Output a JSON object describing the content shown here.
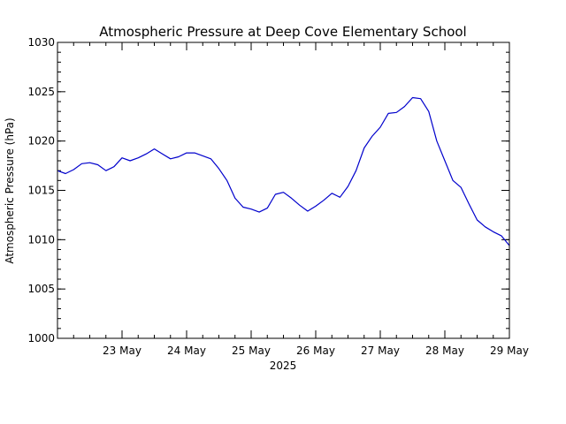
{
  "chart_data": {
    "type": "line",
    "title": "Atmospheric Pressure at Deep Cove Elementary School",
    "ylabel": "Atmospheric Pressure (hPa)",
    "xlabel": "2025",
    "xlim": [
      "2025-05-22T00:00",
      "2025-05-29T00:00"
    ],
    "ylim": [
      1000,
      1030
    ],
    "y_major_ticks": [
      1000,
      1005,
      1010,
      1015,
      1020,
      1025,
      1030
    ],
    "y_minor_step": 1,
    "x_major_ticks": [
      {
        "date": "2025-05-23T00:00",
        "label": "23 May"
      },
      {
        "date": "2025-05-24T00:00",
        "label": "24 May"
      },
      {
        "date": "2025-05-25T00:00",
        "label": "25 May"
      },
      {
        "date": "2025-05-26T00:00",
        "label": "26 May"
      },
      {
        "date": "2025-05-27T00:00",
        "label": "27 May"
      },
      {
        "date": "2025-05-28T00:00",
        "label": "28 May"
      },
      {
        "date": "2025-05-29T00:00",
        "label": "29 May"
      }
    ],
    "x_minor_step_hours": 6,
    "grid": false,
    "line_color": "#0000cc",
    "series": [
      {
        "x": [
          "2025-05-22T00:00",
          "2025-05-22T03:00",
          "2025-05-22T06:00",
          "2025-05-22T09:00",
          "2025-05-22T12:00",
          "2025-05-22T15:00",
          "2025-05-22T18:00",
          "2025-05-22T21:00",
          "2025-05-23T00:00",
          "2025-05-23T03:00",
          "2025-05-23T06:00",
          "2025-05-23T09:00",
          "2025-05-23T12:00",
          "2025-05-23T15:00",
          "2025-05-23T18:00",
          "2025-05-23T21:00",
          "2025-05-24T00:00",
          "2025-05-24T03:00",
          "2025-05-24T06:00",
          "2025-05-24T09:00",
          "2025-05-24T12:00",
          "2025-05-24T15:00",
          "2025-05-24T18:00",
          "2025-05-24T21:00",
          "2025-05-25T00:00",
          "2025-05-25T03:00",
          "2025-05-25T06:00",
          "2025-05-25T09:00",
          "2025-05-25T12:00",
          "2025-05-25T15:00",
          "2025-05-25T18:00",
          "2025-05-25T21:00",
          "2025-05-26T00:00",
          "2025-05-26T03:00",
          "2025-05-26T06:00",
          "2025-05-26T09:00",
          "2025-05-26T12:00",
          "2025-05-26T15:00",
          "2025-05-26T18:00",
          "2025-05-26T21:00",
          "2025-05-27T00:00",
          "2025-05-27T03:00",
          "2025-05-27T06:00",
          "2025-05-27T09:00",
          "2025-05-27T12:00",
          "2025-05-27T15:00",
          "2025-05-27T18:00",
          "2025-05-27T21:00",
          "2025-05-28T00:00",
          "2025-05-28T03:00",
          "2025-05-28T06:00",
          "2025-05-28T09:00",
          "2025-05-28T12:00",
          "2025-05-28T15:00",
          "2025-05-28T18:00",
          "2025-05-28T21:00",
          "2025-05-29T00:00"
        ],
        "y": [
          1017.0,
          1016.7,
          1017.1,
          1017.7,
          1017.8,
          1017.6,
          1017.0,
          1017.4,
          1018.3,
          1018.0,
          1018.3,
          1018.7,
          1019.2,
          1018.7,
          1018.2,
          1018.4,
          1018.8,
          1018.8,
          1018.5,
          1018.2,
          1017.2,
          1016.0,
          1014.2,
          1013.3,
          1013.1,
          1012.8,
          1013.2,
          1014.6,
          1014.8,
          1014.2,
          1013.5,
          1012.9,
          1013.4,
          1014.0,
          1014.7,
          1014.3,
          1015.4,
          1017.0,
          1019.3,
          1020.5,
          1021.4,
          1022.8,
          1022.9,
          1023.5,
          1024.4,
          1024.3,
          1023.0,
          1020.0,
          1018.0,
          1016.0,
          1015.3,
          1013.6,
          1012.0,
          1011.3,
          1010.8,
          1010.4,
          1009.4
        ]
      }
    ]
  }
}
